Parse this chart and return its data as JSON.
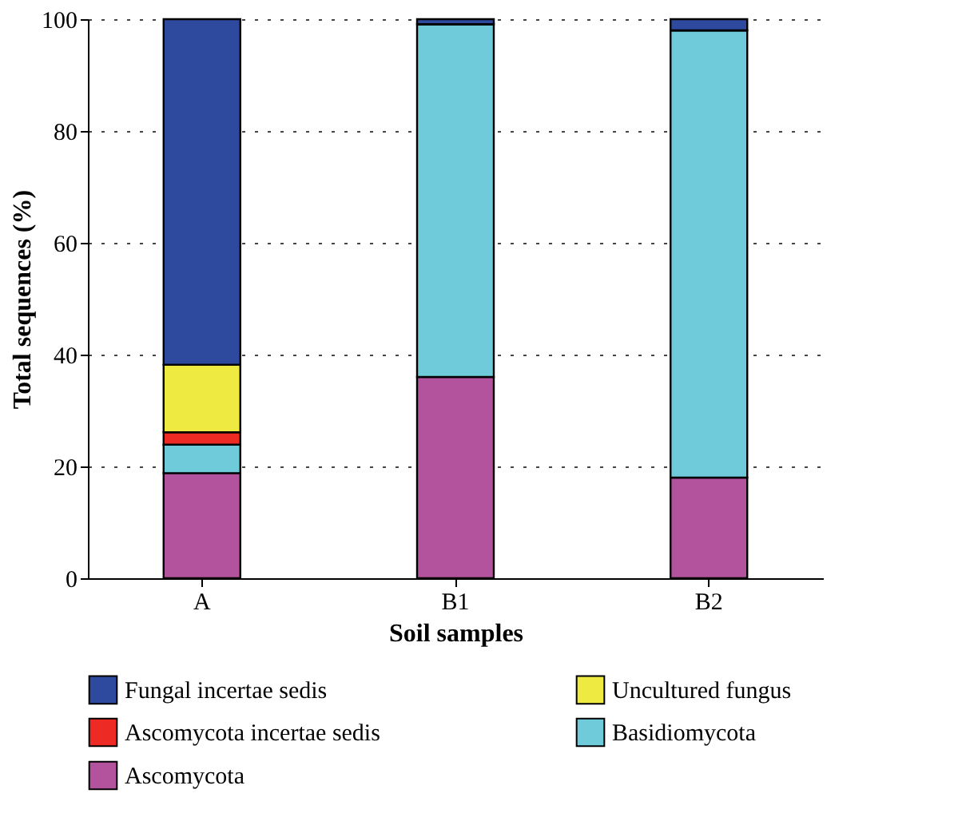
{
  "chart_data": {
    "type": "bar",
    "stacked": true,
    "xlabel": "Soil samples",
    "ylabel": "Total sequences (%)",
    "categories": [
      "A",
      "B1",
      "B2"
    ],
    "series": [
      {
        "name": "Ascomycota",
        "color": "#b3539e",
        "values": [
          18.8,
          36,
          18
        ]
      },
      {
        "name": "Basidiomycota",
        "color": "#6fcbd9",
        "values": [
          5.1,
          63.1,
          80
        ]
      },
      {
        "name": "Ascomycota incertae sedis",
        "color": "#ee2a24",
        "values": [
          2.2,
          0,
          0
        ]
      },
      {
        "name": "Uncultured fungus",
        "color": "#eeea42",
        "values": [
          12.1,
          0,
          0
        ]
      },
      {
        "name": "Fungal incertae sedis",
        "color": "#2e4a9e",
        "values": [
          61.8,
          0.9,
          2
        ]
      }
    ],
    "ylim": [
      0,
      100
    ],
    "yticks": [
      0,
      20,
      40,
      60,
      80,
      100
    ],
    "grid": "y",
    "legend": "bottom"
  }
}
